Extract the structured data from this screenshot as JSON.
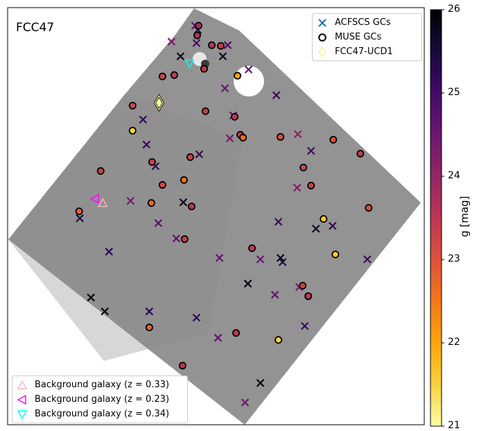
{
  "panel_label": "FCC47",
  "legend_top": [
    {
      "label": "ACFSCS GCs",
      "symbol": "x",
      "color": "#1f77b4"
    },
    {
      "label": "MUSE GCs",
      "symbol": "circle",
      "color": "#000000"
    },
    {
      "label": "FCC47-UCD1",
      "symbol": "diamond",
      "color": "#f4f49c"
    }
  ],
  "legend_bottom": [
    {
      "label": "Background galaxy (z = 0.33)",
      "symbol": "triangle-up",
      "color": "#ffb6c1"
    },
    {
      "label": "Background galaxy (z = 0.23)",
      "symbol": "triangle-left",
      "color": "#ff00ff"
    },
    {
      "label": "Background galaxy (z = 0.34)",
      "symbol": "triangle-down",
      "color": "#00ffff"
    }
  ],
  "colorbar": {
    "label": "g [mag]",
    "min": 21,
    "max": 26,
    "ticks": [
      "21",
      "22",
      "23",
      "24",
      "25",
      "26"
    ],
    "colormap": "inferno_r"
  },
  "chart_data": {
    "type": "scatter",
    "title": "",
    "xlabel": "",
    "ylabel": "",
    "xlim": [
      0,
      600
    ],
    "ylim": [
      0,
      600
    ],
    "color_axis": "g [mag]",
    "series": [
      {
        "name": "ACFSCS GCs",
        "marker": "x",
        "points": [
          {
            "x": 272,
            "y": 549,
            "g": 24.9
          },
          {
            "x": 249,
            "y": 530,
            "g": 25.8
          },
          {
            "x": 317,
            "y": 546,
            "g": 24.8
          },
          {
            "x": 236,
            "y": 551,
            "g": 24.3
          },
          {
            "x": 270,
            "y": 574,
            "g": 24.6
          },
          {
            "x": 274,
            "y": 568,
            "g": 25.4
          },
          {
            "x": 310,
            "y": 530,
            "g": 25.7
          },
          {
            "x": 347,
            "y": 511,
            "g": 24.6
          },
          {
            "x": 313,
            "y": 484,
            "g": 24.5
          },
          {
            "x": 387,
            "y": 474,
            "g": 25.1
          },
          {
            "x": 195,
            "y": 439,
            "g": 25.2
          },
          {
            "x": 200,
            "y": 403,
            "g": 25.1
          },
          {
            "x": 276,
            "y": 389,
            "g": 25.2
          },
          {
            "x": 320,
            "y": 412,
            "g": 24.4
          },
          {
            "x": 325,
            "y": 445,
            "g": 24.6
          },
          {
            "x": 418,
            "y": 418,
            "g": 24.1
          },
          {
            "x": 437,
            "y": 394,
            "g": 25.1
          },
          {
            "x": 213,
            "y": 372,
            "g": 25.2
          },
          {
            "x": 417,
            "y": 341,
            "g": 24.2
          },
          {
            "x": 177,
            "y": 322,
            "g": 24.4
          },
          {
            "x": 253,
            "y": 320,
            "g": 25.8
          },
          {
            "x": 217,
            "y": 290,
            "g": 24.7
          },
          {
            "x": 104,
            "y": 297,
            "g": 25.5
          },
          {
            "x": 390,
            "y": 292,
            "g": 25.1
          },
          {
            "x": 444,
            "y": 282,
            "g": 25.7
          },
          {
            "x": 468,
            "y": 286,
            "g": 25.2
          },
          {
            "x": 243,
            "y": 268,
            "g": 24.6
          },
          {
            "x": 146,
            "y": 249,
            "g": 25.2
          },
          {
            "x": 305,
            "y": 240,
            "g": 24.6
          },
          {
            "x": 364,
            "y": 238,
            "g": 24.5
          },
          {
            "x": 393,
            "y": 240,
            "g": 25.8
          },
          {
            "x": 396,
            "y": 234,
            "g": 25.4
          },
          {
            "x": 518,
            "y": 238,
            "g": 25.1
          },
          {
            "x": 346,
            "y": 203,
            "g": 25.9
          },
          {
            "x": 385,
            "y": 187,
            "g": 24.6
          },
          {
            "x": 420,
            "y": 198,
            "g": 24.4
          },
          {
            "x": 428,
            "y": 142,
            "g": 25.1
          },
          {
            "x": 120,
            "y": 183,
            "g": 25.9
          },
          {
            "x": 140,
            "y": 163,
            "g": 25.9
          },
          {
            "x": 204,
            "y": 163,
            "g": 25.3
          },
          {
            "x": 272,
            "y": 154,
            "g": 25.2
          },
          {
            "x": 303,
            "y": 125,
            "g": 24.6
          },
          {
            "x": 364,
            "y": 60,
            "g": 25.9
          },
          {
            "x": 342,
            "y": 32,
            "g": 24.4
          }
        ]
      },
      {
        "name": "MUSE GCs",
        "marker": "circle",
        "points": [
          {
            "x": 275,
            "y": 574,
            "g": 23.8
          },
          {
            "x": 273,
            "y": 560,
            "g": 23.6
          },
          {
            "x": 294,
            "y": 546,
            "g": 23.5
          },
          {
            "x": 307,
            "y": 545,
            "g": 23.4
          },
          {
            "x": 283,
            "y": 512,
            "g": 23.4
          },
          {
            "x": 331,
            "y": 502,
            "g": 22.0
          },
          {
            "x": 223,
            "y": 501,
            "g": 23.2
          },
          {
            "x": 240,
            "y": 503,
            "g": 23.4
          },
          {
            "x": 285,
            "y": 451,
            "g": 23.4
          },
          {
            "x": 327,
            "y": 443,
            "g": 23.5
          },
          {
            "x": 180,
            "y": 459,
            "g": 23.2
          },
          {
            "x": 335,
            "y": 417,
            "g": 23.3
          },
          {
            "x": 339,
            "y": 413,
            "g": 22.6
          },
          {
            "x": 393,
            "y": 414,
            "g": 23.0
          },
          {
            "x": 469,
            "y": 410,
            "g": 23.0
          },
          {
            "x": 180,
            "y": 423,
            "g": 21.5
          },
          {
            "x": 263,
            "y": 385,
            "g": 23.3
          },
          {
            "x": 208,
            "y": 378,
            "g": 23.3
          },
          {
            "x": 508,
            "y": 390,
            "g": 23.4
          },
          {
            "x": 426,
            "y": 370,
            "g": 23.2
          },
          {
            "x": 134,
            "y": 365,
            "g": 23.3
          },
          {
            "x": 223,
            "y": 345,
            "g": 23.2
          },
          {
            "x": 254,
            "y": 352,
            "g": 22.6
          },
          {
            "x": 437,
            "y": 344,
            "g": 23.3
          },
          {
            "x": 207,
            "y": 319,
            "g": 22.7
          },
          {
            "x": 265,
            "y": 314,
            "g": 23.5
          },
          {
            "x": 103,
            "y": 307,
            "g": 22.8
          },
          {
            "x": 455,
            "y": 296,
            "g": 21.6
          },
          {
            "x": 520,
            "y": 312,
            "g": 23.1
          },
          {
            "x": 352,
            "y": 254,
            "g": 23.4
          },
          {
            "x": 255,
            "y": 267,
            "g": 23.3
          },
          {
            "x": 472,
            "y": 245,
            "g": 21.6
          },
          {
            "x": 425,
            "y": 200,
            "g": 23.3
          },
          {
            "x": 433,
            "y": 185,
            "g": 23.4
          },
          {
            "x": 204,
            "y": 140,
            "g": 22.8
          },
          {
            "x": 329,
            "y": 132,
            "g": 23.5
          },
          {
            "x": 390,
            "y": 122,
            "g": 21.5
          },
          {
            "x": 252,
            "y": 85,
            "g": 23.5
          }
        ]
      },
      {
        "name": "FCC47-UCD1",
        "marker": "diamond",
        "points": [
          {
            "x": 218,
            "y": 463,
            "g": 21.0
          }
        ]
      },
      {
        "name": "Background galaxy (z = 0.33)",
        "marker": "triangle-up",
        "points": [
          {
            "x": 137,
            "y": 319
          }
        ]
      },
      {
        "name": "Background galaxy (z = 0.23)",
        "marker": "triangle-left",
        "points": [
          {
            "x": 126,
            "y": 325
          }
        ]
      },
      {
        "name": "Background galaxy (z = 0.34)",
        "marker": "triangle-down",
        "points": [
          {
            "x": 262,
            "y": 520
          }
        ]
      }
    ]
  }
}
